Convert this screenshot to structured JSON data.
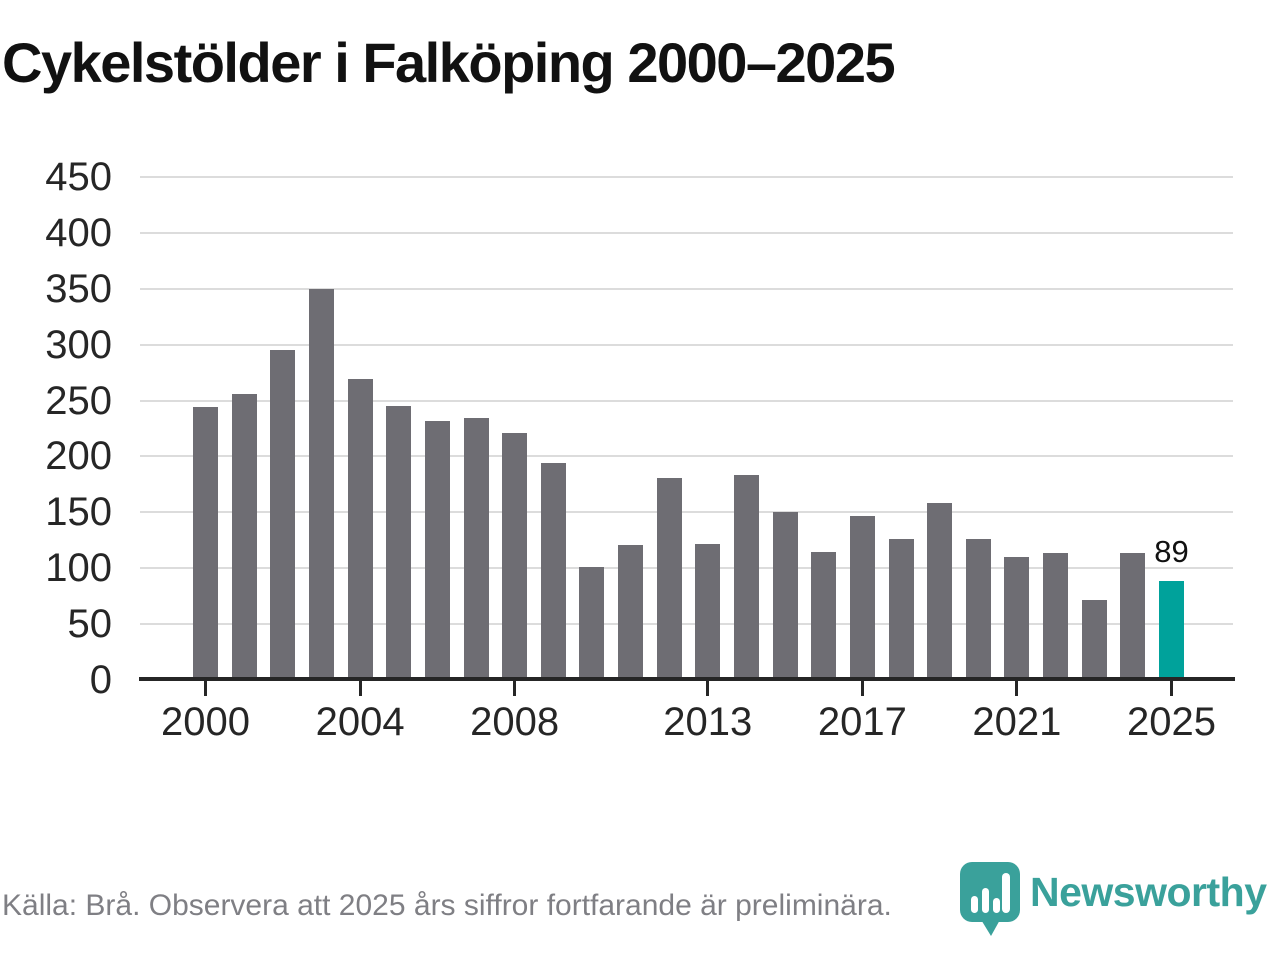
{
  "title": "Cykelstölder i Falköping 2000–2025",
  "footer": {
    "source_note": "Källa: Brå. Observera att 2025 års siffror fortfarande är preliminära."
  },
  "branding": {
    "name": "Newsworthy",
    "icon": "bar-chart-pin-icon"
  },
  "colors": {
    "bar": "#6e6d73",
    "highlight": "#00a29b",
    "logo": "#3aa19b",
    "grid": "#dcdcdc",
    "axis": "#262626",
    "title_text": "#111111",
    "tick_text": "#262626",
    "value_label_text": "#111111",
    "footer_text": "#7f7f84"
  },
  "chart_data": {
    "type": "bar",
    "title": "Cykelstölder i Falköping 2000–2025",
    "categories": [
      "2000",
      "2001",
      "2002",
      "2003",
      "2004",
      "2005",
      "2006",
      "2007",
      "2008",
      "2009",
      "2010",
      "2011",
      "2012",
      "2013",
      "2014",
      "2015",
      "2016",
      "2017",
      "2018",
      "2019",
      "2020",
      "2021",
      "2022",
      "2023",
      "2024",
      "2025"
    ],
    "values": [
      244,
      256,
      295,
      350,
      269,
      245,
      232,
      234,
      221,
      194,
      101,
      121,
      181,
      122,
      183,
      150,
      115,
      147,
      126,
      158,
      126,
      110,
      114,
      72,
      114,
      89
    ],
    "highlight_category": "2025",
    "highlight_value_label": "89",
    "xlabel": "",
    "ylabel": "",
    "ylim": [
      0,
      450
    ],
    "yticks": [
      0,
      50,
      100,
      150,
      200,
      250,
      300,
      350,
      400,
      450
    ],
    "xticks": [
      "2000",
      "2004",
      "2008",
      "2013",
      "2017",
      "2021",
      "2025"
    ],
    "grid": "horizontal-only",
    "legend": "none"
  }
}
